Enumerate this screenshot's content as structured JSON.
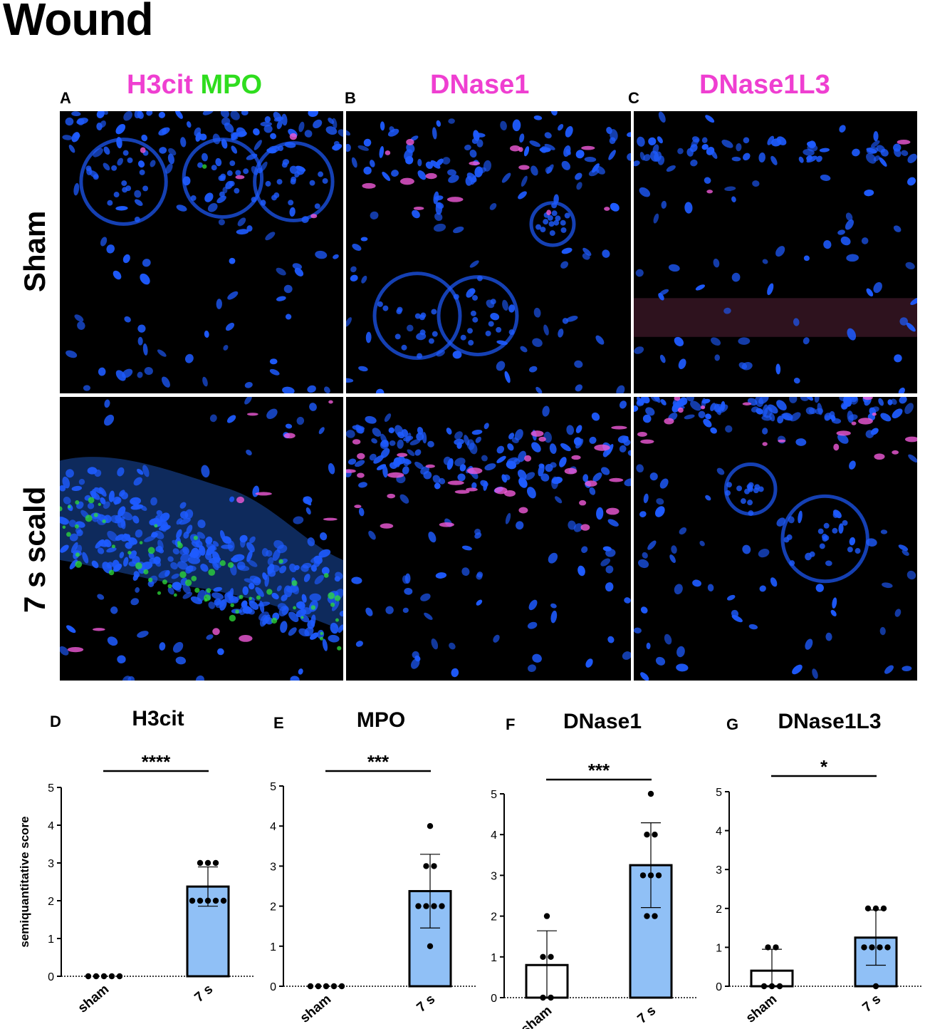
{
  "figure_title": "Wound",
  "panel_letters": {
    "A": "A",
    "B": "B",
    "C": "C",
    "D": "D",
    "E": "E",
    "F": "F",
    "G": "G"
  },
  "column_headers": {
    "A_part1": "H3cit",
    "A_part2": "MPO",
    "B": "DNase1",
    "C": "DNase1L3"
  },
  "row_labels": {
    "top": "Sham",
    "bottom": "7 s scald"
  },
  "colors": {
    "magenta_label": "#ef3fd1",
    "green_label": "#2fdd1e",
    "bar_fill": "#90c0f6",
    "nuclei": "#1e5bff"
  },
  "micrograph_panels": [
    {
      "name": "sham-h3cit-mpo",
      "stain": "H3cit MPO",
      "group": "Sham"
    },
    {
      "name": "sham-dnase1",
      "stain": "DNase1",
      "group": "Sham"
    },
    {
      "name": "sham-dnase1l3",
      "stain": "DNase1L3",
      "group": "Sham"
    },
    {
      "name": "scald-h3cit-mpo",
      "stain": "H3cit MPO",
      "group": "7 s scald"
    },
    {
      "name": "scald-dnase1",
      "stain": "DNase1",
      "group": "7 s scald"
    },
    {
      "name": "scald-dnase1l3",
      "stain": "DNase1L3",
      "group": "7 s scald"
    }
  ],
  "chart_data": [
    {
      "type": "bar",
      "panel": "D",
      "title": "H3cit",
      "ylabel": "semiquantitative score",
      "xlabel": "",
      "categories": [
        "sham",
        "7 s"
      ],
      "ylim": [
        0,
        5
      ],
      "yticks": [
        0,
        1,
        2,
        3,
        4,
        5
      ],
      "values": [
        0,
        2.375
      ],
      "error": [
        0,
        0.52
      ],
      "points": [
        [
          0,
          0,
          0,
          0,
          0
        ],
        [
          3,
          3,
          3,
          2,
          2,
          2,
          2,
          2
        ]
      ],
      "significance": "****"
    },
    {
      "type": "bar",
      "panel": "E",
      "title": "MPO",
      "ylabel": "",
      "xlabel": "",
      "categories": [
        "sham",
        "7 s"
      ],
      "ylim": [
        0,
        5
      ],
      "yticks": [
        0,
        1,
        2,
        3,
        4,
        5
      ],
      "values": [
        0,
        2.375
      ],
      "error": [
        0,
        0.92
      ],
      "points": [
        [
          0,
          0,
          0,
          0,
          0
        ],
        [
          4,
          3,
          3,
          2,
          2,
          2,
          2,
          1
        ]
      ],
      "significance": "***"
    },
    {
      "type": "bar",
      "panel": "F",
      "title": "DNase1",
      "ylabel": "",
      "xlabel": "",
      "categories": [
        "sham",
        "7 s"
      ],
      "ylim": [
        0,
        5
      ],
      "yticks": [
        0,
        1,
        2,
        3,
        4,
        5
      ],
      "values": [
        0.8,
        3.25
      ],
      "error": [
        0.84,
        1.04
      ],
      "points": [
        [
          2,
          1,
          1,
          0,
          0
        ],
        [
          5,
          4,
          4,
          3,
          3,
          3,
          2,
          2
        ]
      ],
      "significance": "***"
    },
    {
      "type": "bar",
      "panel": "G",
      "title": "DNase1L3",
      "ylabel": "",
      "xlabel": "",
      "categories": [
        "sham",
        "7 s"
      ],
      "ylim": [
        0,
        5
      ],
      "yticks": [
        0,
        1,
        2,
        3,
        4,
        5
      ],
      "values": [
        0.4,
        1.25
      ],
      "error": [
        0.55,
        0.71
      ],
      "points": [
        [
          1,
          1,
          0,
          0,
          0
        ],
        [
          2,
          2,
          2,
          1,
          1,
          1,
          1,
          0
        ]
      ],
      "significance": "*"
    }
  ]
}
